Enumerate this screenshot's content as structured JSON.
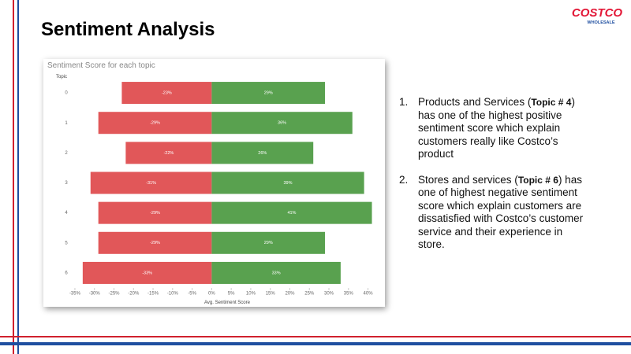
{
  "slide": {
    "title": "Sentiment Analysis",
    "logo": {
      "name": "COSTCO",
      "tagline": "WHOLESALE"
    },
    "points": [
      {
        "marker": "1.",
        "runs": [
          {
            "text": "Products and Services ("
          },
          {
            "text": "Topic # 4",
            "bold": true
          },
          {
            "text": ") has one of the highest positive sentiment score which explain customers really like Costco’s product"
          }
        ]
      },
      {
        "marker": "2.",
        "runs": [
          {
            "text": "Stores and services ("
          },
          {
            "text": "Topic # 6",
            "bold": true
          },
          {
            "text": ") has one of highest negative sentiment score which explain customers are dissatisfied with Costco’s customer service and their experience in store."
          }
        ]
      }
    ]
  },
  "chart_data": {
    "type": "diverging-bar",
    "title": "Sentiment Score for each topic",
    "y_label": "Topic",
    "x_label": "Avg. Sentiment Score",
    "categories": [
      "0",
      "1",
      "2",
      "3",
      "4",
      "5",
      "6"
    ],
    "series": [
      {
        "color": "#e15759",
        "values": [
          -23,
          -29,
          -22,
          -31,
          -29,
          -29,
          -33
        ],
        "value_labels": [
          "-23%",
          "-29%",
          "-22%",
          "-31%",
          "-29%",
          "-29%",
          "-33%"
        ]
      },
      {
        "color": "#59a14f",
        "values": [
          29,
          36,
          26,
          39,
          41,
          29,
          33
        ],
        "value_labels": [
          "29%",
          "36%",
          "26%",
          "39%",
          "41%",
          "29%",
          "33%"
        ]
      }
    ],
    "xlim": [
      -36,
      41.5
    ],
    "xticks": [
      {
        "value": -35,
        "label": "-35%"
      },
      {
        "value": -30,
        "label": "-30%"
      },
      {
        "value": -25,
        "label": "-25%"
      },
      {
        "value": -20,
        "label": "-20%"
      },
      {
        "value": -15,
        "label": "-15%"
      },
      {
        "value": -10,
        "label": "-10%"
      },
      {
        "value": -5,
        "label": "-5%"
      },
      {
        "value": 0,
        "label": "0%"
      },
      {
        "value": 5,
        "label": "5%"
      },
      {
        "value": 10,
        "label": "10%"
      },
      {
        "value": 15,
        "label": "15%"
      },
      {
        "value": 20,
        "label": "20%"
      },
      {
        "value": 25,
        "label": "25%"
      },
      {
        "value": 30,
        "label": "30%"
      },
      {
        "value": 35,
        "label": "35%"
      },
      {
        "value": 40,
        "label": "40%"
      }
    ],
    "grid": false
  }
}
